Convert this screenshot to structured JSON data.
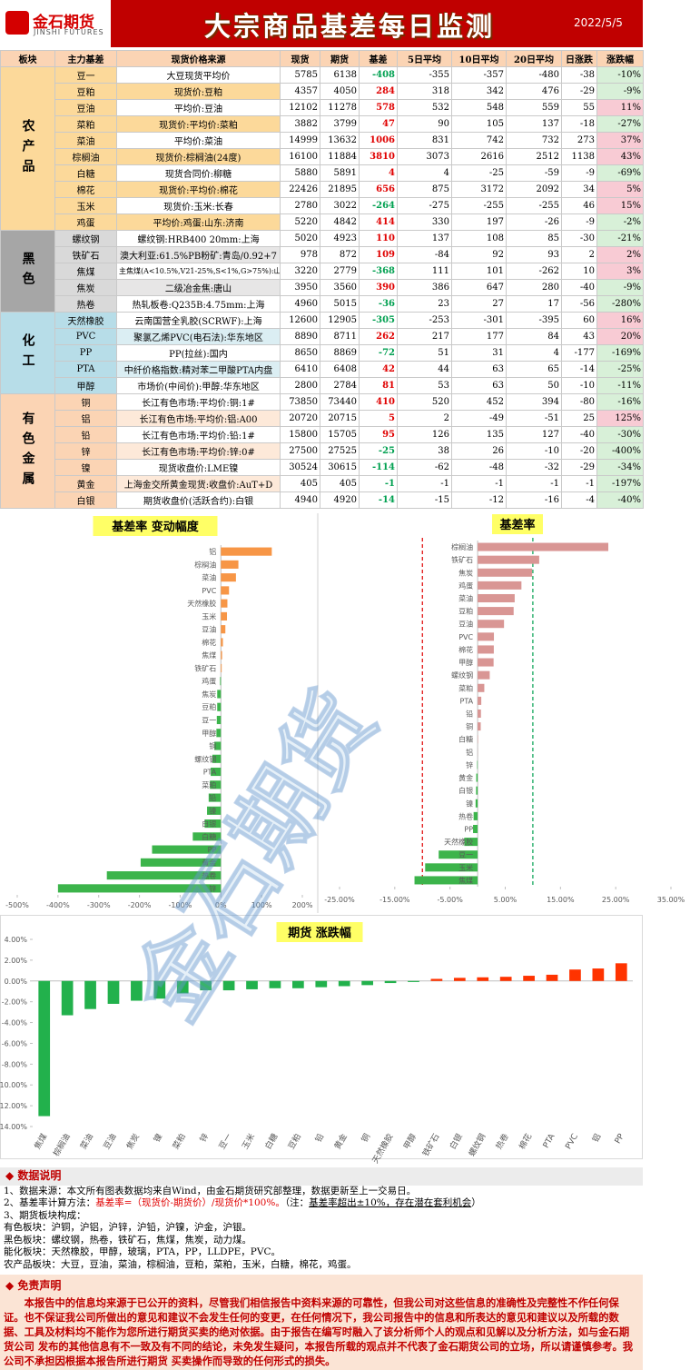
{
  "header": {
    "logo_cn": "金石期货",
    "logo_en": "JINSHI FUTURES",
    "title": "大宗商品基差每日监测",
    "date": "2022/5/5"
  },
  "table": {
    "columns": [
      "板块",
      "主力基差",
      "现货价格来源",
      "现货",
      "期货",
      "基差",
      "5日平均",
      "10日平均",
      "20日平均",
      "日涨跌",
      "涨跌幅"
    ],
    "sections": [
      {
        "name": "农产品",
        "rows": [
          [
            "豆一",
            "大豆现货平均价",
            5785,
            6138,
            -408,
            -355,
            -357,
            -480,
            -38,
            "-10%"
          ],
          [
            "豆粕",
            "现货价:豆粕",
            4357,
            4050,
            284,
            318,
            342,
            476,
            -29,
            "-9%"
          ],
          [
            "豆油",
            "平均价:豆油",
            12102,
            11278,
            578,
            532,
            548,
            559,
            55,
            "11%"
          ],
          [
            "菜粕",
            "现货价:平均价:菜粕",
            3882,
            3799,
            47,
            90,
            105,
            137,
            -18,
            "-27%"
          ],
          [
            "菜油",
            "平均价:菜油",
            14999,
            13632,
            1006,
            831,
            742,
            732,
            273,
            "37%"
          ],
          [
            "棕榈油",
            "现货价:棕榈油(24度)",
            16100,
            11884,
            3810,
            3073,
            2616,
            2512,
            1138,
            "43%"
          ],
          [
            "白糖",
            "现货合同价:柳糖",
            5880,
            5891,
            4,
            4,
            -25,
            -59,
            -9,
            "-69%"
          ],
          [
            "棉花",
            "现货价:平均价:棉花",
            22426,
            21895,
            656,
            875,
            3172,
            2092,
            34,
            "5%"
          ],
          [
            "玉米",
            "现货价:玉米:长春",
            2780,
            3022,
            -264,
            -275,
            -255,
            -255,
            46,
            "15%"
          ],
          [
            "鸡蛋",
            "平均价:鸡蛋:山东:济南",
            5220,
            4842,
            414,
            330,
            197,
            -26,
            -9,
            "-2%"
          ]
        ]
      },
      {
        "name": "黑色",
        "rows": [
          [
            "螺纹钢",
            "螺纹钢:HRB400 20mm:上海",
            5020,
            4923,
            110,
            137,
            108,
            85,
            -30,
            "-21%"
          ],
          [
            "铁矿石",
            "澳大利亚:61.5%PB粉矿:青岛/0.92+7",
            978,
            872,
            109,
            -84,
            92,
            93,
            2,
            "2%"
          ],
          [
            "焦煤",
            "主焦煤(A<10.5%,V21-25%,S<1%,G>75%):山西",
            3220,
            2779,
            -368,
            111,
            101,
            -262,
            10,
            "3%"
          ],
          [
            "焦炭",
            "二级冶金焦:唐山",
            3950,
            3560,
            390,
            386,
            647,
            280,
            -40,
            "-9%"
          ],
          [
            "热卷",
            "热轧板卷:Q235B:4.75mm:上海",
            4960,
            5015,
            -36,
            23,
            27,
            17,
            -56,
            "-280%"
          ]
        ]
      },
      {
        "name": "化工",
        "rows": [
          [
            "天然橡胶",
            "云南国营全乳胶(SCRWF):上海",
            12600,
            12905,
            -305,
            -253,
            -301,
            -395,
            60,
            "16%"
          ],
          [
            "PVC",
            "聚氯乙烯PVC(电石法):华东地区",
            8890,
            8711,
            262,
            217,
            177,
            84,
            43,
            "20%"
          ],
          [
            "PP",
            "PP(拉丝):国内",
            8650,
            8869,
            -72,
            51,
            31,
            4,
            -177,
            "-169%"
          ],
          [
            "PTA",
            "中纤价格指数:精对苯二甲酸PTA内盘",
            6410,
            6408,
            42,
            44,
            63,
            65,
            -14,
            "-25%"
          ],
          [
            "甲醇",
            "市场价(中间价):甲醇:华东地区",
            2800,
            2784,
            81,
            53,
            63,
            50,
            -10,
            "-11%"
          ]
        ]
      },
      {
        "name": "有色金属",
        "rows": [
          [
            "铜",
            "长江有色市场:平均价:铜:1#",
            73850,
            73440,
            410,
            520,
            452,
            394,
            -80,
            "-16%"
          ],
          [
            "铝",
            "长江有色市场:平均价:铝:A00",
            20720,
            20715,
            5,
            2,
            -49,
            -51,
            25,
            "125%"
          ],
          [
            "铅",
            "长江有色市场:平均价:铅:1#",
            15800,
            15705,
            95,
            126,
            135,
            127,
            -40,
            "-30%"
          ],
          [
            "锌",
            "长江有色市场:平均价:锌:0#",
            27500,
            27525,
            -25,
            38,
            26,
            -10,
            -20,
            "-400%"
          ],
          [
            "镍",
            "现货收盘价:LME镍",
            30524,
            30615,
            -114,
            -62,
            -48,
            -32,
            -29,
            "-34%"
          ],
          [
            "黄金",
            "上海金交所黄金现货:收盘价:AuT+D",
            405,
            405,
            -1,
            -1,
            -1,
            -1,
            -1,
            "-197%"
          ],
          [
            "白银",
            "期货收盘价(活跃合约):白银",
            4940,
            4920,
            -14,
            -15,
            -12,
            -16,
            -4,
            "-40%"
          ]
        ]
      }
    ]
  },
  "chart_data": [
    {
      "type": "bar",
      "orientation": "horizontal",
      "title": "基差率 变动幅度",
      "categories": [
        "铝",
        "棕榈油",
        "菜油",
        "PVC",
        "天然橡胶",
        "玉米",
        "豆油",
        "棉花",
        "焦煤",
        "铁矿石",
        "鸡蛋",
        "焦炭",
        "豆粕",
        "豆一",
        "甲醇",
        "铜",
        "螺纹钢",
        "PTA",
        "菜粕",
        "铅",
        "镍",
        "白银",
        "白糖",
        "PP",
        "黄金",
        "热卷",
        "锌"
      ],
      "values": [
        125,
        43,
        37,
        20,
        16,
        15,
        11,
        5,
        3,
        2,
        -2,
        -9,
        -9,
        -10,
        -11,
        -16,
        -21,
        -25,
        -27,
        -30,
        -34,
        -40,
        -69,
        -169,
        -197,
        -280,
        -400
      ],
      "positive_color": "#f79646",
      "negative_color": "#3cb44b",
      "xlim": [
        -500,
        200
      ],
      "xticks": [
        {
          "value": -500,
          "label": "-500%"
        },
        {
          "value": -400,
          "label": "-400%"
        },
        {
          "value": -300,
          "label": "-300%"
        },
        {
          "value": -200,
          "label": "-200%"
        },
        {
          "value": -100,
          "label": "-100%"
        },
        {
          "value": 0,
          "label": "0%"
        },
        {
          "value": 100,
          "label": "100%"
        },
        {
          "value": 200,
          "label": "200%"
        }
      ]
    },
    {
      "type": "bar",
      "orientation": "horizontal",
      "title": "基差率",
      "categories": [
        "棕榈油",
        "铁矿石",
        "焦炭",
        "鸡蛋",
        "菜油",
        "豆粕",
        "豆油",
        "PVC",
        "棉花",
        "甲醇",
        "螺纹钢",
        "菜粕",
        "PTA",
        "铅",
        "铜",
        "白糖",
        "铝",
        "锌",
        "黄金",
        "白银",
        "镍",
        "热卷",
        "PP",
        "天然橡胶",
        "豆一",
        "玉米",
        "焦煤"
      ],
      "values": [
        23.66,
        11.15,
        9.87,
        7.93,
        6.71,
        6.52,
        4.78,
        2.95,
        2.93,
        2.89,
        2.19,
        1.21,
        0.66,
        0.6,
        0.56,
        0.07,
        0.02,
        -0.09,
        -0.25,
        -0.28,
        -0.37,
        -0.73,
        -0.83,
        -2.42,
        -7.05,
        -9.5,
        -11.43
      ],
      "positive_color": "#d99694",
      "negative_color": "#3cb44b",
      "reference_lines": [
        {
          "value": -10,
          "color": "#e00000"
        },
        {
          "value": 10,
          "color": "#00a050"
        }
      ],
      "xlim": [
        -25,
        35
      ],
      "xticks": [
        {
          "value": -25,
          "label": "-25.00%"
        },
        {
          "value": -15,
          "label": "-15.00%"
        },
        {
          "value": -5,
          "label": "-5.00%"
        },
        {
          "value": 5,
          "label": "5.00%"
        },
        {
          "value": 15,
          "label": "15.00%"
        },
        {
          "value": 25,
          "label": "25.00%"
        },
        {
          "value": 35,
          "label": "35.00%"
        }
      ]
    },
    {
      "type": "bar",
      "orientation": "vertical",
      "title": "期货 涨跌幅",
      "categories": [
        "焦煤",
        "棕榈油",
        "菜油",
        "豆油",
        "焦炭",
        "镍",
        "菜粕",
        "锌",
        "豆一",
        "玉米",
        "白糖",
        "豆粕",
        "铅",
        "黄金",
        "铜",
        "天然橡胶",
        "甲醇",
        "铁矿石",
        "白银",
        "螺纹钢",
        "热卷",
        "棉花",
        "PTA",
        "PVC",
        "铝",
        "PP"
      ],
      "values": [
        -13.0,
        -3.3,
        -2.7,
        -2.2,
        -1.9,
        -1.7,
        -1.2,
        -0.9,
        -0.9,
        -0.8,
        -0.7,
        -0.7,
        -0.6,
        -0.5,
        -0.4,
        -0.2,
        -0.1,
        0.2,
        0.3,
        0.35,
        0.4,
        0.5,
        0.6,
        1.1,
        1.2,
        1.7
      ],
      "positive_color": "#ff3300",
      "negative_color": "#22b14c",
      "ylim": [
        -14,
        4
      ],
      "yticks": [
        {
          "value": -14,
          "label": "-14.00%"
        },
        {
          "value": -12,
          "label": "-12.00%"
        },
        {
          "value": -10,
          "label": "-10.00%"
        },
        {
          "value": -8,
          "label": "-8.00%"
        },
        {
          "value": -6,
          "label": "-6.00%"
        },
        {
          "value": -4,
          "label": "-4.00%"
        },
        {
          "value": -2,
          "label": "-2.00%"
        },
        {
          "value": 0,
          "label": "0.00%"
        },
        {
          "value": 2,
          "label": "2.00%"
        },
        {
          "value": 4,
          "label": "4.00%"
        }
      ]
    }
  ],
  "watermark": "金石期货",
  "notes": {
    "title": "◆ 数据说明",
    "lines": [
      "1、数据来源：本文所有图表数据均来自Wind，由金石期货研究部整理，数据更新至上一交易日。",
      [
        "2、基差率计算方法：",
        "基差率=（现货价-期货价）/现货价*100%。",
        "（注：",
        "基差率超出±10%，存在潜在套利机会",
        "）"
      ],
      "3、期货板块构成：",
      "有色板块：沪铜，沪铝，沪锌，沪铅，沪镍，沪金，沪银。",
      "黑色板块：螺纹钢，热卷，铁矿石，焦煤，焦炭，动力煤。",
      "能化板块：天然橡胶，甲醇，玻璃，PTA，PP，LLDPE，PVC。",
      "农产品板块：大豆，豆油，菜油，棕榈油，豆粕，菜粕，玉米，白糖，棉花，鸡蛋。"
    ]
  },
  "disclaimer": {
    "title": "◆ 免责声明",
    "text": "本报告中的信息均来源于已公开的资料，尽管我们相信报告中资料来源的可靠性，但我公司对这些信息的准确性及完整性不作任何保证。也不保证我公司所做出的意见和建议不会发生任何的变更，在任何情况下，我公司报告中的信息和所表达的意见和建议以及所载的数据、工具及材料均不能作为您所进行期货买卖的绝对依据。由于报告在编写时融入了该分析师个人的观点和见解以及分析方法，如与金石期货公司 发布的其他信息有不一致及有不同的结论，未免发生疑问，本报告所载的观点并不代表了金石期货公司的立场，所以请谨慎参考。我公司不承担因根据本报告所进行期货 买卖操作而导致的任何形式的损失。"
  }
}
